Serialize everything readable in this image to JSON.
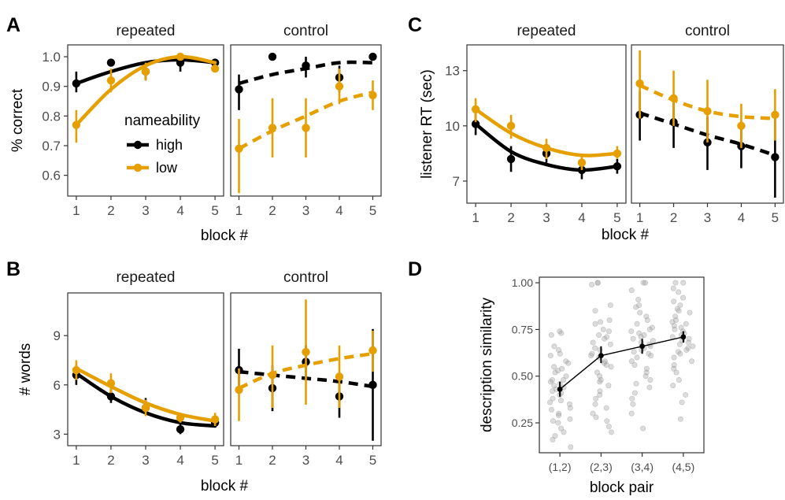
{
  "colors": {
    "high": "#000000",
    "low": "#E69F00",
    "jitter": "#9a9a9a",
    "frame": "#333333"
  },
  "legend": {
    "title": "nameability",
    "items": [
      {
        "key": "high",
        "label": "high"
      },
      {
        "key": "low",
        "label": "low"
      }
    ]
  },
  "chart_data": [
    {
      "id": "A",
      "type": "line",
      "letter": "A",
      "facets": [
        "repeated",
        "control"
      ],
      "xlabel": "block #",
      "ylabel": "% correct",
      "x": [
        1,
        2,
        3,
        4,
        5
      ],
      "ylim": [
        0.53,
        1.04
      ],
      "yticks": [
        0.6,
        0.7,
        0.8,
        0.9,
        1.0
      ],
      "ytick_labels": [
        "0.6",
        "0.7",
        "0.8",
        "0.9",
        "1.0"
      ],
      "series": [
        {
          "facet": "repeated",
          "group": "high",
          "values": [
            0.91,
            0.98,
            0.95,
            0.98,
            0.98
          ],
          "ci_low": [
            0.88,
            null,
            0.92,
            0.95,
            null
          ],
          "ci_high": [
            0.95,
            null,
            0.98,
            1.0,
            null
          ],
          "fit": [
            0.91,
            0.95,
            0.98,
            0.99,
            0.98
          ]
        },
        {
          "facet": "repeated",
          "group": "low",
          "values": [
            0.77,
            0.92,
            0.95,
            1.0,
            0.96
          ],
          "ci_low": [
            0.71,
            0.88,
            0.92,
            null,
            null
          ],
          "ci_high": [
            0.82,
            0.96,
            0.98,
            null,
            null
          ],
          "fit": [
            0.77,
            0.89,
            0.97,
            1.0,
            0.98
          ]
        },
        {
          "facet": "control",
          "group": "high",
          "values": [
            0.89,
            1.0,
            0.97,
            0.93,
            1.0
          ],
          "ci_low": [
            0.82,
            null,
            0.93,
            0.88,
            null
          ],
          "ci_high": [
            0.94,
            null,
            1.0,
            0.97,
            null
          ],
          "fit": [
            0.91,
            0.94,
            0.96,
            0.98,
            0.98
          ]
        },
        {
          "facet": "control",
          "group": "low",
          "values": [
            0.69,
            0.76,
            0.76,
            0.9,
            0.87
          ],
          "ci_low": [
            0.54,
            0.66,
            0.66,
            0.84,
            0.82
          ],
          "ci_high": [
            0.79,
            0.86,
            0.86,
            0.96,
            0.92
          ],
          "fit": [
            0.69,
            0.75,
            0.8,
            0.85,
            0.88
          ]
        }
      ]
    },
    {
      "id": "B",
      "type": "line",
      "letter": "B",
      "facets": [
        "repeated",
        "control"
      ],
      "xlabel": "block #",
      "ylabel": "# words",
      "x": [
        1,
        2,
        3,
        4,
        5
      ],
      "ylim": [
        2.3,
        11.6
      ],
      "yticks": [
        3,
        6,
        9
      ],
      "ytick_labels": [
        "3",
        "6",
        "9"
      ],
      "series": [
        {
          "facet": "repeated",
          "group": "high",
          "values": [
            6.6,
            5.3,
            4.6,
            3.3,
            3.7
          ],
          "ci_low": [
            6.0,
            4.9,
            4.2,
            3.0,
            3.4
          ],
          "ci_high": [
            7.2,
            5.8,
            5.2,
            3.6,
            4.1
          ],
          "fit": [
            6.7,
            5.3,
            4.3,
            3.7,
            3.5
          ]
        },
        {
          "facet": "repeated",
          "group": "low",
          "values": [
            6.9,
            6.1,
            4.6,
            4.0,
            3.9
          ],
          "ci_low": [
            6.3,
            5.5,
            4.1,
            3.7,
            3.5
          ],
          "ci_high": [
            7.5,
            6.7,
            5.1,
            4.3,
            4.3
          ],
          "fit": [
            7.0,
            5.9,
            4.9,
            4.2,
            3.8
          ]
        },
        {
          "facet": "control",
          "group": "high",
          "values": [
            6.9,
            5.8,
            7.4,
            5.3,
            6.0
          ],
          "ci_low": [
            5.7,
            4.4,
            6.5,
            4.0,
            2.6
          ],
          "ci_high": [
            8.2,
            7.2,
            8.4,
            6.6,
            9.4
          ],
          "fit": [
            6.8,
            6.6,
            6.4,
            6.2,
            5.9
          ]
        },
        {
          "facet": "control",
          "group": "low",
          "values": [
            5.7,
            6.6,
            8.0,
            6.5,
            8.1
          ],
          "ci_low": [
            3.8,
            4.6,
            4.8,
            4.6,
            6.8
          ],
          "ci_high": [
            7.0,
            8.4,
            11.2,
            8.4,
            9.3
          ],
          "fit": [
            5.8,
            6.7,
            7.2,
            7.6,
            7.9
          ]
        }
      ]
    },
    {
      "id": "C",
      "type": "line",
      "letter": "C",
      "facets": [
        "repeated",
        "control"
      ],
      "xlabel": "block #",
      "ylabel": "listener RT (sec)",
      "x": [
        1,
        2,
        3,
        4,
        5
      ],
      "ylim": [
        5.8,
        14.4
      ],
      "yticks": [
        7,
        10,
        13
      ],
      "ytick_labels": [
        "7",
        "10",
        "13"
      ],
      "series": [
        {
          "facet": "repeated",
          "group": "high",
          "values": [
            10.1,
            8.2,
            8.5,
            7.6,
            7.8
          ],
          "ci_low": [
            9.5,
            7.5,
            8.0,
            7.1,
            7.4
          ],
          "ci_high": [
            10.7,
            8.9,
            9.0,
            8.1,
            8.2
          ],
          "fit": [
            10.1,
            8.6,
            7.9,
            7.6,
            7.8
          ]
        },
        {
          "facet": "repeated",
          "group": "low",
          "values": [
            10.9,
            10.0,
            8.8,
            8.0,
            8.5
          ],
          "ci_low": [
            10.2,
            9.3,
            8.2,
            7.6,
            8.2
          ],
          "ci_high": [
            11.5,
            10.6,
            9.3,
            8.4,
            8.9
          ],
          "fit": [
            10.9,
            9.6,
            8.8,
            8.4,
            8.5
          ]
        },
        {
          "facet": "control",
          "group": "high",
          "values": [
            10.6,
            10.2,
            9.1,
            8.9,
            8.3
          ],
          "ci_low": [
            9.2,
            8.8,
            7.6,
            7.7,
            6.1
          ],
          "ci_high": [
            11.9,
            11.6,
            10.5,
            10.1,
            10.5
          ],
          "fit": [
            10.7,
            10.1,
            9.5,
            9.0,
            8.4
          ]
        },
        {
          "facet": "control",
          "group": "low",
          "values": [
            12.3,
            11.5,
            10.8,
            10.0,
            10.6
          ],
          "ci_low": [
            10.4,
            10.0,
            9.1,
            8.8,
            9.2
          ],
          "ci_high": [
            14.1,
            13.0,
            12.5,
            11.2,
            12.0
          ],
          "fit": [
            12.2,
            11.4,
            10.8,
            10.5,
            10.4
          ]
        }
      ]
    },
    {
      "id": "D",
      "type": "scatter",
      "letter": "D",
      "xlabel": "block pair",
      "ylabel": "description similarity",
      "categories": [
        "(1,2)",
        "(2,3)",
        "(3,4)",
        "(4,5)"
      ],
      "ylim": [
        0.09,
        1.03
      ],
      "yticks": [
        0.25,
        0.5,
        0.75,
        1.0
      ],
      "ytick_labels": [
        "0.25",
        "0.50",
        "0.75",
        "1.00"
      ],
      "means": [
        0.43,
        0.61,
        0.66,
        0.71
      ],
      "ci_low": [
        0.39,
        0.57,
        0.62,
        0.68
      ],
      "ci_high": [
        0.47,
        0.66,
        0.7,
        0.74
      ],
      "points": [
        [
          0.74,
          0.73,
          0.72,
          0.66,
          0.64,
          0.62,
          0.61,
          0.57,
          0.54,
          0.53,
          0.52,
          0.5,
          0.48,
          0.47,
          0.46,
          0.45,
          0.44,
          0.42,
          0.41,
          0.4,
          0.38,
          0.36,
          0.35,
          0.33,
          0.32,
          0.29,
          0.27,
          0.26,
          0.25,
          0.22,
          0.2,
          0.18,
          0.16,
          0.12,
          0.3,
          0.55,
          0.37,
          0.43,
          0.48,
          0.58
        ],
        [
          1.0,
          1.0,
          0.99,
          0.88,
          0.85,
          0.8,
          0.79,
          0.78,
          0.75,
          0.72,
          0.71,
          0.7,
          0.68,
          0.65,
          0.64,
          0.62,
          0.61,
          0.6,
          0.58,
          0.57,
          0.55,
          0.52,
          0.5,
          0.48,
          0.47,
          0.45,
          0.42,
          0.4,
          0.38,
          0.35,
          0.33,
          0.3,
          0.28,
          0.26,
          0.23,
          0.2,
          0.67,
          0.74,
          0.56
        ],
        [
          1.0,
          1.0,
          0.96,
          0.91,
          0.88,
          0.87,
          0.84,
          0.82,
          0.8,
          0.78,
          0.76,
          0.74,
          0.73,
          0.72,
          0.71,
          0.7,
          0.69,
          0.68,
          0.66,
          0.65,
          0.64,
          0.63,
          0.62,
          0.61,
          0.6,
          0.58,
          0.56,
          0.54,
          0.52,
          0.5,
          0.48,
          0.46,
          0.44,
          0.41,
          0.38,
          0.35,
          0.3,
          0.22,
          0.67,
          0.75
        ],
        [
          1.0,
          1.0,
          0.97,
          0.95,
          0.92,
          0.9,
          0.88,
          0.86,
          0.85,
          0.84,
          0.82,
          0.8,
          0.79,
          0.78,
          0.77,
          0.76,
          0.75,
          0.74,
          0.72,
          0.71,
          0.7,
          0.69,
          0.68,
          0.67,
          0.66,
          0.65,
          0.64,
          0.63,
          0.62,
          0.6,
          0.58,
          0.56,
          0.54,
          0.52,
          0.48,
          0.45,
          0.4,
          0.36,
          0.27,
          0.73
        ]
      ]
    }
  ]
}
